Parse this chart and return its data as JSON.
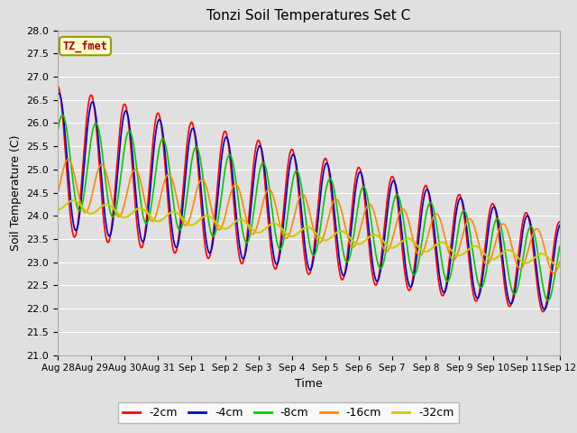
{
  "title": "Tonzi Soil Temperatures Set C",
  "xlabel": "Time",
  "ylabel": "Soil Temperature (C)",
  "ylim": [
    21.0,
    28.0
  ],
  "yticks": [
    21.0,
    21.5,
    22.0,
    22.5,
    23.0,
    23.5,
    24.0,
    24.5,
    25.0,
    25.5,
    26.0,
    26.5,
    27.0,
    27.5,
    28.0
  ],
  "xtick_labels": [
    "Aug 28",
    "Aug 29",
    "Aug 30",
    "Aug 31",
    "Sep 1",
    "Sep 2",
    "Sep 3",
    "Sep 4",
    "Sep 5",
    "Sep 6",
    "Sep 7",
    "Sep 8",
    "Sep 9",
    "Sep 10",
    "Sep 11",
    "Sep 12"
  ],
  "series_colors": [
    "#ff0000",
    "#0000cc",
    "#00cc00",
    "#ff8800",
    "#cccc00"
  ],
  "series_labels": [
    "-2cm",
    "-4cm",
    "-8cm",
    "-16cm",
    "-32cm"
  ],
  "bg_color": "#e0e0e0",
  "grid_color": "#ffffff",
  "legend_label": "TZ_fmet",
  "legend_bg": "#ffffcc",
  "legend_edge": "#999900"
}
